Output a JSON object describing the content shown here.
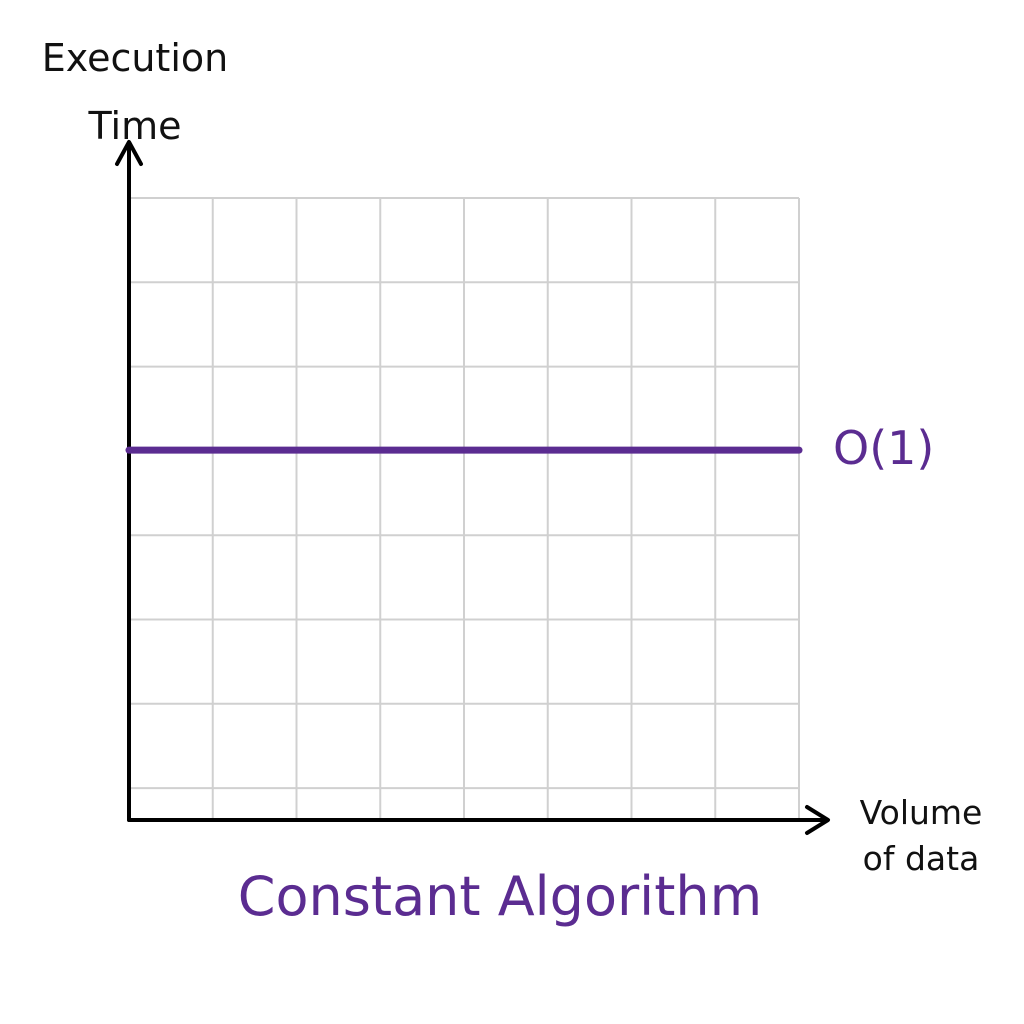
{
  "chart_data": {
    "type": "line",
    "title": "Constant Algorithm",
    "xlabel": [
      "Volume",
      "of data"
    ],
    "ylabel": [
      "Execution",
      "Time"
    ],
    "xlim": [
      0,
      8
    ],
    "ylim": [
      0,
      7.4
    ],
    "grid": true,
    "series": [
      {
        "name": "O(1)",
        "x": [
          0,
          8
        ],
        "y": [
          4.4,
          4.4
        ]
      }
    ]
  },
  "colors": {
    "series": "#5b2c91",
    "axis": "#000000",
    "grid": "#d0d0d0",
    "title": "#5b2c91"
  }
}
